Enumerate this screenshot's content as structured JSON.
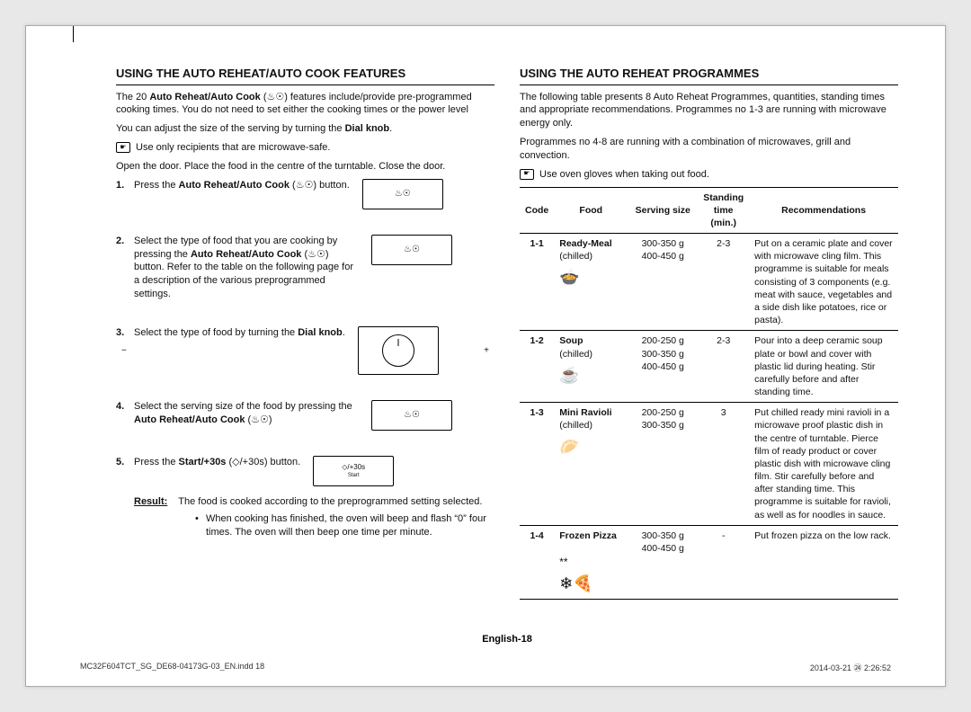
{
  "left": {
    "title": "USING THE AUTO REHEAT/AUTO COOK FEATURES",
    "intro_a": "The 20 ",
    "intro_bold1": "Auto Reheat/Auto Cook",
    "intro_b": " (♨☉) features include/provide pre-programmed cooking times. You do not need to set either the cooking times or the power level",
    "adjust": "You can adjust the size of the serving by turning the ",
    "dialknob": "Dial knob",
    "note1": "Use only recipients that are microwave-safe.",
    "open_door": "Open the door. Place the food in the centre of the turntable. Close the door.",
    "steps": [
      {
        "pre": "Press the ",
        "bold": "Auto Reheat/Auto Cook",
        "post": " (♨☉) button.",
        "illus": "button"
      },
      {
        "pre": "Select the type of food that you are cooking by pressing the ",
        "bold": "Auto Reheat/Auto Cook",
        "post": " (♨☉) button. Refer to the table on the following page for a description of the various preprogrammed settings.",
        "illus": "button"
      },
      {
        "pre": "Select the type of food by turning the ",
        "bold": "Dial knob",
        "post": ".",
        "illus": "dial"
      },
      {
        "pre": "Select the serving size of the food by pressing the ",
        "bold": "Auto Reheat/Auto Cook",
        "post": " (♨☉)",
        "illus": "button"
      },
      {
        "pre": "Press the ",
        "bold": "Start/+30s",
        "post": " (◇/+30s) button.",
        "illus": "start"
      }
    ],
    "result_label": "Result:",
    "result_text": "The food is cooked according to the preprogrammed setting selected.",
    "result_bullet": "When cooking has finished, the oven will beep and flash “0” four times. The oven will then beep one time per minute."
  },
  "right": {
    "title": "USING THE AUTO REHEAT PROGRAMMES",
    "intro": "The following table presents 8 Auto Reheat Programmes, quantities, standing times and appropriate recommendations. Programmes no 1-3 are running with microwave energy only.",
    "intro2": "Programmes no 4-8 are running with a combination of microwaves, grill and convection.",
    "note": "Use oven gloves when taking out food.",
    "headers": {
      "code": "Code",
      "food": "Food",
      "serving": "Serving size",
      "time": "Standing time (min.)",
      "time_l1": "Standing",
      "time_l2": "time",
      "time_l3": "(min.)",
      "rec": "Recommendations"
    },
    "rows": [
      {
        "code": "1-1",
        "food_name": "Ready-Meal",
        "food_sub": "(chilled)",
        "icon": "🍲",
        "serving": "300-350 g\n400-450 g",
        "time": "2-3",
        "rec": "Put on a ceramic plate and cover with microwave cling film. This programme is suitable for meals consisting of 3 components (e.g. meat with sauce, vegetables and a side dish like potatoes, rice or pasta)."
      },
      {
        "code": "1-2",
        "food_name": "Soup",
        "food_sub": "(chilled)",
        "icon": "☕",
        "serving": "200-250 g\n300-350 g\n400-450 g",
        "time": "2-3",
        "rec": "Pour into a deep ceramic soup plate or bowl and cover with plastic lid during heating. Stir carefully before and after standing time."
      },
      {
        "code": "1-3",
        "food_name": "Mini Ravioli",
        "food_sub": "(chilled)",
        "icon": "🥟",
        "serving": "200-250 g\n300-350 g",
        "time": "3",
        "rec": "Put chilled ready mini ravioli in a microwave proof plastic dish in the centre of turntable. Pierce film of ready product or cover plastic dish with microwave cling film. Stir carefully before and after standing time. This programme is suitable for ravioli, as well as for noodles in sauce."
      },
      {
        "code": "1-4",
        "food_name": "Frozen Pizza",
        "food_sub": "",
        "icon": "❄🍕",
        "snow": "**",
        "serving": "300-350 g\n400-450 g",
        "time": "-",
        "rec": "Put frozen pizza on the low rack."
      }
    ]
  },
  "footer": {
    "page": "English-18",
    "file": "MC32F604TCT_SG_DE68-04173G-03_EN.indd   18",
    "timestamp": "2014-03-21   ㉔ 2:26:52"
  },
  "icons": {
    "auto": "♨☉",
    "start": "◇/+30s"
  }
}
